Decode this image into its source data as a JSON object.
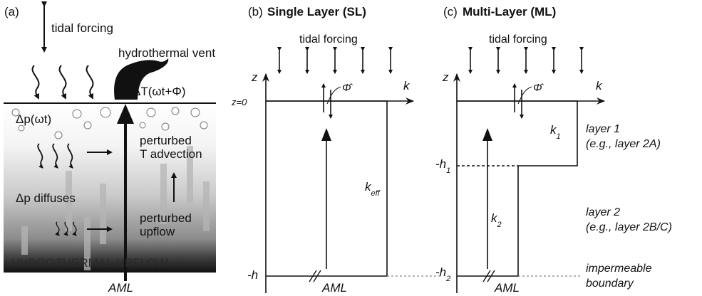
{
  "panel_a": {
    "label": "(a)",
    "tidal_forcing": "tidal forcing",
    "hydrothermal_vent": "hydrothermal vent",
    "delta_t": "ΔT(ωt+Φ)",
    "delta_p": "Δp(ωt)",
    "perturbed_t_advection_1": "perturbed",
    "perturbed_t_advection_2": "T advection",
    "dp_diffuses": "Δp diffuses",
    "perturbed_upflow_1": "perturbed",
    "perturbed_upflow_2": "upflow",
    "hydrothermal_upflow": "HYDROTHERMAL UPFLOW",
    "aml": "AML"
  },
  "panel_b": {
    "label": "(b)",
    "title": "Single Layer (SL)",
    "tidal_forcing": "tidal forcing",
    "z_axis": "z",
    "k_axis": "k",
    "phase": "Φ̂",
    "z0": "z=0",
    "k_eff": "k",
    "k_eff_sub": "eff",
    "minus_h": "-h",
    "aml": "AML"
  },
  "panel_c": {
    "label": "(c)",
    "title": "Multi-Layer (ML)",
    "tidal_forcing": "tidal forcing",
    "z_axis": "z",
    "k_axis": "k",
    "phase": "Φ̂",
    "k1": "k",
    "k1_sub": "1",
    "k2": "k",
    "k2_sub": "2",
    "minus_h1": "-h",
    "minus_h1_sub": "1",
    "minus_h2": "-h",
    "minus_h2_sub": "2",
    "aml": "AML",
    "layer1_a": "layer 1",
    "layer1_b": "(e.g., layer 2A)",
    "layer2_a": "layer 2",
    "layer2_b": "(e.g., layer 2B/C)",
    "impermeable_a": "impermeable",
    "impermeable_b": "boundary"
  }
}
